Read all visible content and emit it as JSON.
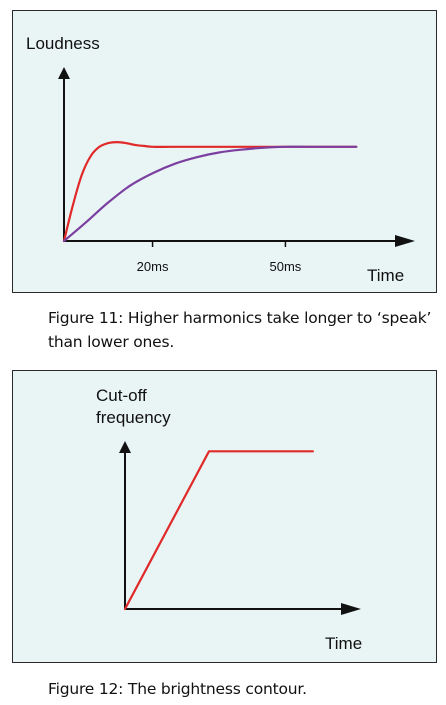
{
  "figures": [
    {
      "caption": "Figure 11: Higher harmonics take longer to ‘speak’ than lower ones.",
      "chart_data": {
        "type": "line",
        "ylabel": "Loudness",
        "xlabel": "Time",
        "xlim": [
          0,
          70
        ],
        "ylim": [
          0,
          1.2
        ],
        "x_ticks": [
          {
            "value": 20,
            "label": "20ms"
          },
          {
            "value": 50,
            "label": "50ms"
          }
        ],
        "series": [
          {
            "color": "#e02a2a",
            "x": [
              0,
              2,
              4,
              6,
              8,
              10,
              12,
              14,
              16,
              18,
              20,
              24,
              28,
              32,
              40,
              50,
              60,
              66
            ],
            "y": [
              0,
              0.38,
              0.7,
              0.9,
              1.0,
              1.04,
              1.05,
              1.04,
              1.02,
              1.01,
              1.0,
              1.0,
              1.0,
              1.0,
              1.0,
              1.0,
              1.0,
              1.0
            ]
          },
          {
            "color": "#7b3fa0",
            "x": [
              0,
              5,
              10,
              15,
              20,
              25,
              30,
              35,
              40,
              45,
              50,
              55,
              60,
              66
            ],
            "y": [
              0,
              0.2,
              0.41,
              0.59,
              0.72,
              0.82,
              0.89,
              0.94,
              0.97,
              0.99,
              1.0,
              1.0,
              1.0,
              1.0
            ]
          }
        ],
        "grid": false,
        "legend": "none"
      }
    },
    {
      "caption": "Figure 12: The brightness contour.",
      "chart_data": {
        "type": "line",
        "ylabel": "Cut-off frequency",
        "ylabel_lines": [
          "Cut-off",
          "frequency"
        ],
        "xlabel": "Time",
        "xlim": [
          0,
          100
        ],
        "ylim": [
          0,
          1.3
        ],
        "series": [
          {
            "color": "#e02a2a",
            "x": [
              0,
              38,
              85
            ],
            "y": [
              0,
              1.0,
              1.0
            ]
          }
        ],
        "grid": false,
        "legend": "none"
      }
    }
  ]
}
